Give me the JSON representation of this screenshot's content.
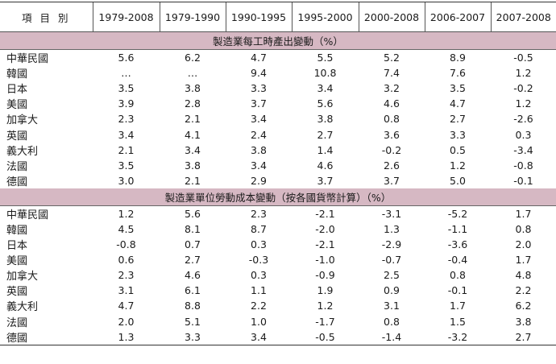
{
  "header": {
    "label": "項 目 別",
    "columns": [
      "1979-2008",
      "1979-1990",
      "1990-1995",
      "1995-2000",
      "2000-2008",
      "2006-2007",
      "2007-2008"
    ]
  },
  "sections": [
    {
      "title": "製造業每工時產出變動（%）",
      "rows": [
        {
          "name": "中華民國",
          "values": [
            "5.6",
            "6.2",
            "4.7",
            "5.5",
            "5.2",
            "8.9",
            "-0.5"
          ]
        },
        {
          "name": "韓國",
          "values": [
            "…",
            "…",
            "9.4",
            "10.8",
            "7.4",
            "7.6",
            "1.2"
          ]
        },
        {
          "name": "日本",
          "values": [
            "3.5",
            "3.8",
            "3.3",
            "3.4",
            "3.2",
            "3.5",
            "-0.2"
          ]
        },
        {
          "name": "美國",
          "values": [
            "3.9",
            "2.8",
            "3.7",
            "5.6",
            "4.6",
            "4.7",
            "1.2"
          ]
        },
        {
          "name": "加拿大",
          "values": [
            "2.3",
            "2.1",
            "3.4",
            "3.8",
            "0.8",
            "2.7",
            "-2.6"
          ]
        },
        {
          "name": "英國",
          "values": [
            "3.4",
            "4.1",
            "2.4",
            "2.7",
            "3.6",
            "3.3",
            "0.3"
          ]
        },
        {
          "name": "義大利",
          "values": [
            "2.1",
            "3.4",
            "3.8",
            "1.4",
            "-0.2",
            "0.5",
            "-3.4"
          ]
        },
        {
          "name": "法國",
          "values": [
            "3.5",
            "3.8",
            "3.4",
            "4.6",
            "2.6",
            "1.2",
            "-0.8"
          ]
        },
        {
          "name": "德國",
          "values": [
            "3.0",
            "2.1",
            "2.9",
            "3.7",
            "3.7",
            "5.0",
            "-0.1"
          ]
        }
      ]
    },
    {
      "title": "製造業單位勞動成本變動（按各國貨幣計算）（%）",
      "rows": [
        {
          "name": "中華民國",
          "values": [
            "1.2",
            "5.6",
            "2.3",
            "-2.1",
            "-3.1",
            "-5.2",
            "1.7"
          ]
        },
        {
          "name": "韓國",
          "values": [
            "4.5",
            "8.1",
            "8.7",
            "-2.0",
            "1.3",
            "-1.1",
            "0.8"
          ]
        },
        {
          "name": "日本",
          "values": [
            "-0.8",
            "0.7",
            "0.3",
            "-2.1",
            "-2.9",
            "-3.6",
            "2.0"
          ]
        },
        {
          "name": "美國",
          "values": [
            "0.6",
            "2.7",
            "-0.3",
            "-1.0",
            "-0.7",
            "-0.4",
            "1.7"
          ]
        },
        {
          "name": "加拿大",
          "values": [
            "2.3",
            "4.6",
            "0.3",
            "-0.9",
            "2.5",
            "0.8",
            "4.8"
          ]
        },
        {
          "name": "英國",
          "values": [
            "3.1",
            "6.1",
            "1.1",
            "1.9",
            "0.9",
            "-0.1",
            "2.2"
          ]
        },
        {
          "name": "義大利",
          "values": [
            "4.7",
            "8.8",
            "2.2",
            "1.2",
            "3.1",
            "1.7",
            "6.2"
          ]
        },
        {
          "name": "法國",
          "values": [
            "2.0",
            "5.1",
            "1.0",
            "-1.7",
            "0.8",
            "1.5",
            "3.8"
          ]
        },
        {
          "name": "德國",
          "values": [
            "1.3",
            "3.3",
            "3.4",
            "-0.5",
            "-1.4",
            "-3.2",
            "2.7"
          ]
        }
      ]
    }
  ]
}
